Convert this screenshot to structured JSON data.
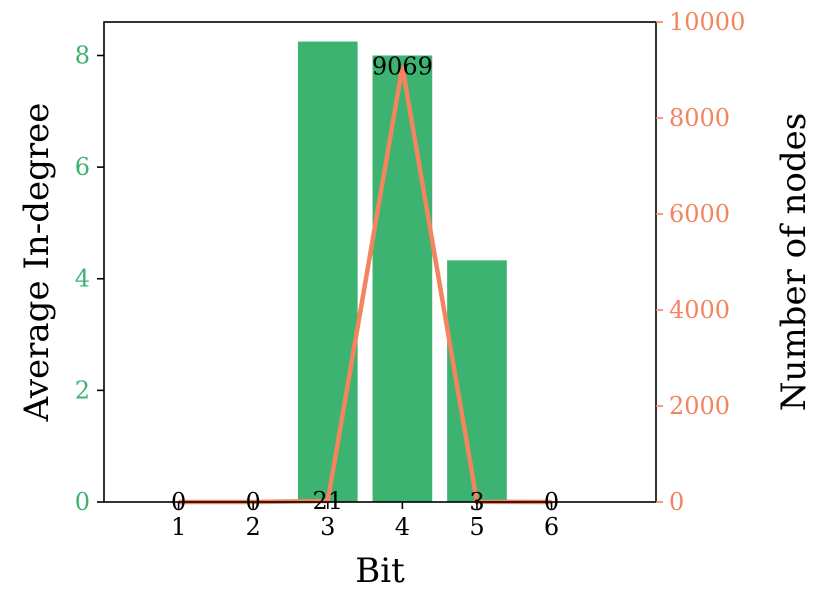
{
  "chart_data": {
    "type": "bar+line",
    "categories": [
      "1",
      "2",
      "3",
      "4",
      "5",
      "6"
    ],
    "xlabel": "Bit",
    "ylabel_left": "Average In-degree",
    "ylabel_right": "Number of nodes",
    "ylim_left": [
      0,
      8.6
    ],
    "ylim_right": [
      0,
      10000
    ],
    "yticks_left": [
      "0",
      "2",
      "4",
      "6",
      "8"
    ],
    "yticks_right": [
      "0",
      "2000",
      "4000",
      "6000",
      "8000",
      "10000"
    ],
    "series": [
      {
        "kind": "bar",
        "axis": "left",
        "color": "#3cb371",
        "values": [
          0,
          0,
          8.25,
          8.0,
          4.33,
          0
        ]
      },
      {
        "kind": "line",
        "axis": "right",
        "color": "#f4845f",
        "values": [
          0,
          0,
          21,
          9069,
          3,
          0
        ],
        "data_labels": [
          "0",
          "0",
          "21",
          "9069",
          "3",
          "0"
        ]
      }
    ],
    "grid": false,
    "legend": "none"
  }
}
